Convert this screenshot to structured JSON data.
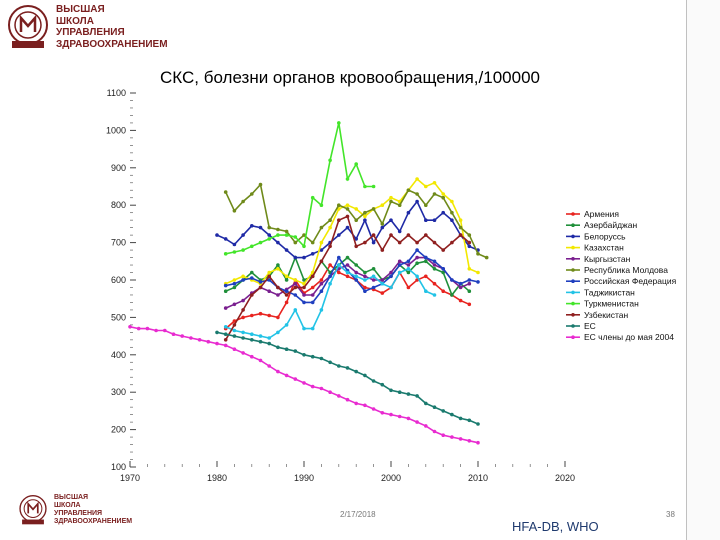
{
  "header": {
    "org_lines": [
      "ВЫСШАЯ",
      "ШКОЛА",
      "УПРАВЛЕНИЯ",
      "ЗДРАВООХРАНЕНИЕМ"
    ]
  },
  "footer": {
    "org_lines": [
      "ВЫСШАЯ",
      "ШКОЛА",
      "УПРАВЛЕНИЯ",
      "ЗДРАВООХРАНЕНИЕМ"
    ],
    "date": "2/17/2018",
    "source": "HFA-DB, WHO",
    "page": "38"
  },
  "colors": {
    "brand": "#7a1f1f",
    "source": "#1f3a6e"
  },
  "chart_data": {
    "type": "line",
    "title": "СКС, болезни органов кровообращения,/100000",
    "xlabel": "",
    "ylabel": "",
    "xlim": [
      1970,
      2020
    ],
    "ylim": [
      100,
      1100
    ],
    "xticks": [
      1970,
      1980,
      1990,
      2000,
      2010,
      2020
    ],
    "yticks": [
      100,
      200,
      300,
      400,
      500,
      600,
      700,
      800,
      900,
      1000,
      1100
    ],
    "legend_position": "right",
    "series": [
      {
        "name": "Армения",
        "color": "#e8231f",
        "x": [
          1981,
          1982,
          1983,
          1984,
          1985,
          1986,
          1987,
          1988,
          1989,
          1990,
          1991,
          1992,
          1993,
          1994,
          1995,
          1996,
          1997,
          1998,
          1999,
          2000,
          2001,
          2002,
          2003,
          2004,
          2005,
          2006,
          2007,
          2008,
          2009
        ],
        "y": [
          470,
          490,
          500,
          505,
          510,
          505,
          500,
          540,
          600,
          565,
          580,
          600,
          640,
          620,
          610,
          600,
          580,
          575,
          565,
          580,
          620,
          580,
          600,
          610,
          590,
          570,
          560,
          545,
          535
        ]
      },
      {
        "name": "Азербайджан",
        "color": "#1f8f3a",
        "x": [
          1981,
          1982,
          1983,
          1984,
          1985,
          1986,
          1987,
          1988,
          1989,
          1990,
          1991,
          1992,
          1993,
          1994,
          1995,
          1996,
          1997,
          1998,
          1999,
          2000,
          2001,
          2002,
          2003,
          2004,
          2005,
          2006,
          2007,
          2008,
          2009
        ],
        "y": [
          570,
          580,
          600,
          620,
          600,
          610,
          640,
          600,
          660,
          600,
          610,
          650,
          620,
          640,
          660,
          640,
          620,
          630,
          600,
          610,
          640,
          620,
          645,
          650,
          630,
          620,
          560,
          590,
          570
        ]
      },
      {
        "name": "Белоруссь",
        "color": "#1f2aa6",
        "x": [
          1980,
          1981,
          1982,
          1983,
          1984,
          1985,
          1986,
          1987,
          1988,
          1989,
          1990,
          1991,
          1992,
          1993,
          1994,
          1995,
          1996,
          1997,
          1998,
          1999,
          2000,
          2001,
          2002,
          2003,
          2004,
          2005,
          2006,
          2007,
          2008,
          2009,
          2010
        ],
        "y": [
          720,
          710,
          695,
          720,
          745,
          740,
          720,
          700,
          680,
          660,
          660,
          670,
          680,
          700,
          720,
          740,
          710,
          760,
          700,
          740,
          760,
          730,
          780,
          810,
          760,
          760,
          780,
          760,
          720,
          690,
          680
        ]
      },
      {
        "name": "Казахстан",
        "color": "#f2e800",
        "x": [
          1981,
          1982,
          1983,
          1984,
          1985,
          1986,
          1987,
          1988,
          1989,
          1990,
          1991,
          1992,
          1993,
          1994,
          1995,
          1996,
          1997,
          1998,
          1999,
          2000,
          2001,
          2002,
          2003,
          2004,
          2005,
          2006,
          2007,
          2008,
          2009,
          2010
        ],
        "y": [
          590,
          600,
          610,
          600,
          590,
          620,
          630,
          610,
          600,
          590,
          620,
          700,
          740,
          790,
          800,
          790,
          770,
          790,
          800,
          820,
          810,
          840,
          870,
          850,
          860,
          830,
          810,
          760,
          630,
          620
        ]
      },
      {
        "name": "Кыргызстан",
        "color": "#7a1f8f",
        "x": [
          1981,
          1982,
          1983,
          1984,
          1985,
          1986,
          1987,
          1988,
          1989,
          1990,
          1991,
          1992,
          1993,
          1994,
          1995,
          1996,
          1997,
          1998,
          1999,
          2000,
          2001,
          2002,
          2003,
          2004,
          2005,
          2006,
          2007,
          2008,
          2009
        ],
        "y": [
          525,
          535,
          545,
          565,
          580,
          570,
          560,
          575,
          590,
          560,
          560,
          590,
          610,
          630,
          640,
          620,
          610,
          600,
          600,
          620,
          650,
          640,
          660,
          660,
          640,
          630,
          600,
          580,
          590
        ]
      },
      {
        "name": "Республика Молдова",
        "color": "#6f8a1a",
        "x": [
          1981,
          1982,
          1983,
          1984,
          1985,
          1986,
          1987,
          1988,
          1989,
          1990,
          1991,
          1992,
          1993,
          1994,
          1995,
          1996,
          1997,
          1998,
          1999,
          2000,
          2001,
          2002,
          2003,
          2004,
          2005,
          2006,
          2007,
          2008,
          2009,
          2010,
          2011
        ],
        "y": [
          835,
          785,
          810,
          830,
          855,
          740,
          735,
          730,
          700,
          720,
          700,
          740,
          760,
          800,
          790,
          760,
          780,
          790,
          750,
          810,
          800,
          840,
          830,
          800,
          830,
          820,
          780,
          740,
          720,
          670,
          660
        ]
      },
      {
        "name": "Российская Федерация",
        "color": "#1f3fbf",
        "x": [
          1981,
          1982,
          1983,
          1984,
          1985,
          1986,
          1987,
          1988,
          1989,
          1990,
          1991,
          1992,
          1993,
          1994,
          1995,
          1996,
          1997,
          1998,
          1999,
          2000,
          2001,
          2002,
          2003,
          2004,
          2005,
          2006,
          2007,
          2008,
          2009,
          2010
        ],
        "y": [
          585,
          590,
          600,
          605,
          595,
          600,
          580,
          570,
          560,
          540,
          540,
          570,
          610,
          660,
          625,
          600,
          570,
          580,
          590,
          610,
          640,
          650,
          680,
          660,
          650,
          630,
          600,
          590,
          600,
          595
        ]
      },
      {
        "name": "Таджикистан",
        "color": "#22c3e6",
        "x": [
          1981,
          1982,
          1983,
          1984,
          1985,
          1986,
          1987,
          1988,
          1989,
          1990,
          1991,
          1992,
          1993,
          1994,
          1995,
          1996,
          1997,
          1998,
          1999,
          2000,
          2001,
          2002,
          2003,
          2004,
          2005
        ],
        "y": [
          475,
          465,
          460,
          455,
          450,
          445,
          460,
          480,
          520,
          470,
          470,
          520,
          590,
          640,
          620,
          610,
          600,
          610,
          590,
          580,
          620,
          630,
          610,
          570,
          560
        ]
      },
      {
        "name": "Туркменистан",
        "color": "#43e52a",
        "x": [
          1981,
          1982,
          1983,
          1984,
          1985,
          1986,
          1987,
          1988,
          1989,
          1990,
          1991,
          1992,
          1993,
          1994,
          1995,
          1996,
          1997,
          1998
        ],
        "y": [
          670,
          675,
          680,
          690,
          700,
          710,
          720,
          720,
          715,
          690,
          820,
          800,
          920,
          1020,
          870,
          910,
          850,
          850
        ]
      },
      {
        "name": "Узбекистан",
        "color": "#8f1f1f",
        "x": [
          1981,
          1982,
          1983,
          1984,
          1985,
          1986,
          1987,
          1988,
          1989,
          1990,
          1991,
          1992,
          1993,
          1994,
          1995,
          1996,
          1997,
          1998,
          1999,
          2000,
          2001,
          2002,
          2003,
          2004,
          2005,
          2006,
          2007,
          2008,
          2009
        ],
        "y": [
          440,
          480,
          520,
          560,
          580,
          610,
          580,
          560,
          580,
          580,
          610,
          650,
          690,
          760,
          770,
          690,
          700,
          720,
          680,
          720,
          700,
          720,
          700,
          720,
          700,
          680,
          700,
          720,
          700
        ]
      },
      {
        "name": "ЕС",
        "color": "#1a7a6e",
        "x": [
          1980,
          1981,
          1982,
          1983,
          1984,
          1985,
          1986,
          1987,
          1988,
          1989,
          1990,
          1991,
          1992,
          1993,
          1994,
          1995,
          1996,
          1997,
          1998,
          1999,
          2000,
          2001,
          2002,
          2003,
          2004,
          2005,
          2006,
          2007,
          2008,
          2009,
          2010
        ],
        "y": [
          460,
          455,
          450,
          445,
          440,
          435,
          430,
          420,
          415,
          410,
          400,
          395,
          390,
          380,
          370,
          365,
          355,
          345,
          330,
          320,
          305,
          300,
          295,
          290,
          270,
          260,
          250,
          240,
          230,
          225,
          215
        ]
      },
      {
        "name": "ЕС члены до мая 2004",
        "color": "#e82bd0",
        "x": [
          1970,
          1971,
          1972,
          1973,
          1974,
          1975,
          1976,
          1977,
          1978,
          1979,
          1980,
          1981,
          1982,
          1983,
          1984,
          1985,
          1986,
          1987,
          1988,
          1989,
          1990,
          1991,
          1992,
          1993,
          1994,
          1995,
          1996,
          1997,
          1998,
          1999,
          2000,
          2001,
          2002,
          2003,
          2004,
          2005,
          2006,
          2007,
          2008,
          2009,
          2010
        ],
        "y": [
          475,
          470,
          470,
          465,
          465,
          455,
          450,
          445,
          440,
          435,
          430,
          425,
          415,
          405,
          395,
          385,
          370,
          355,
          345,
          335,
          325,
          315,
          310,
          300,
          290,
          280,
          270,
          265,
          255,
          245,
          240,
          235,
          230,
          220,
          210,
          195,
          185,
          180,
          175,
          170,
          165
        ]
      }
    ]
  }
}
